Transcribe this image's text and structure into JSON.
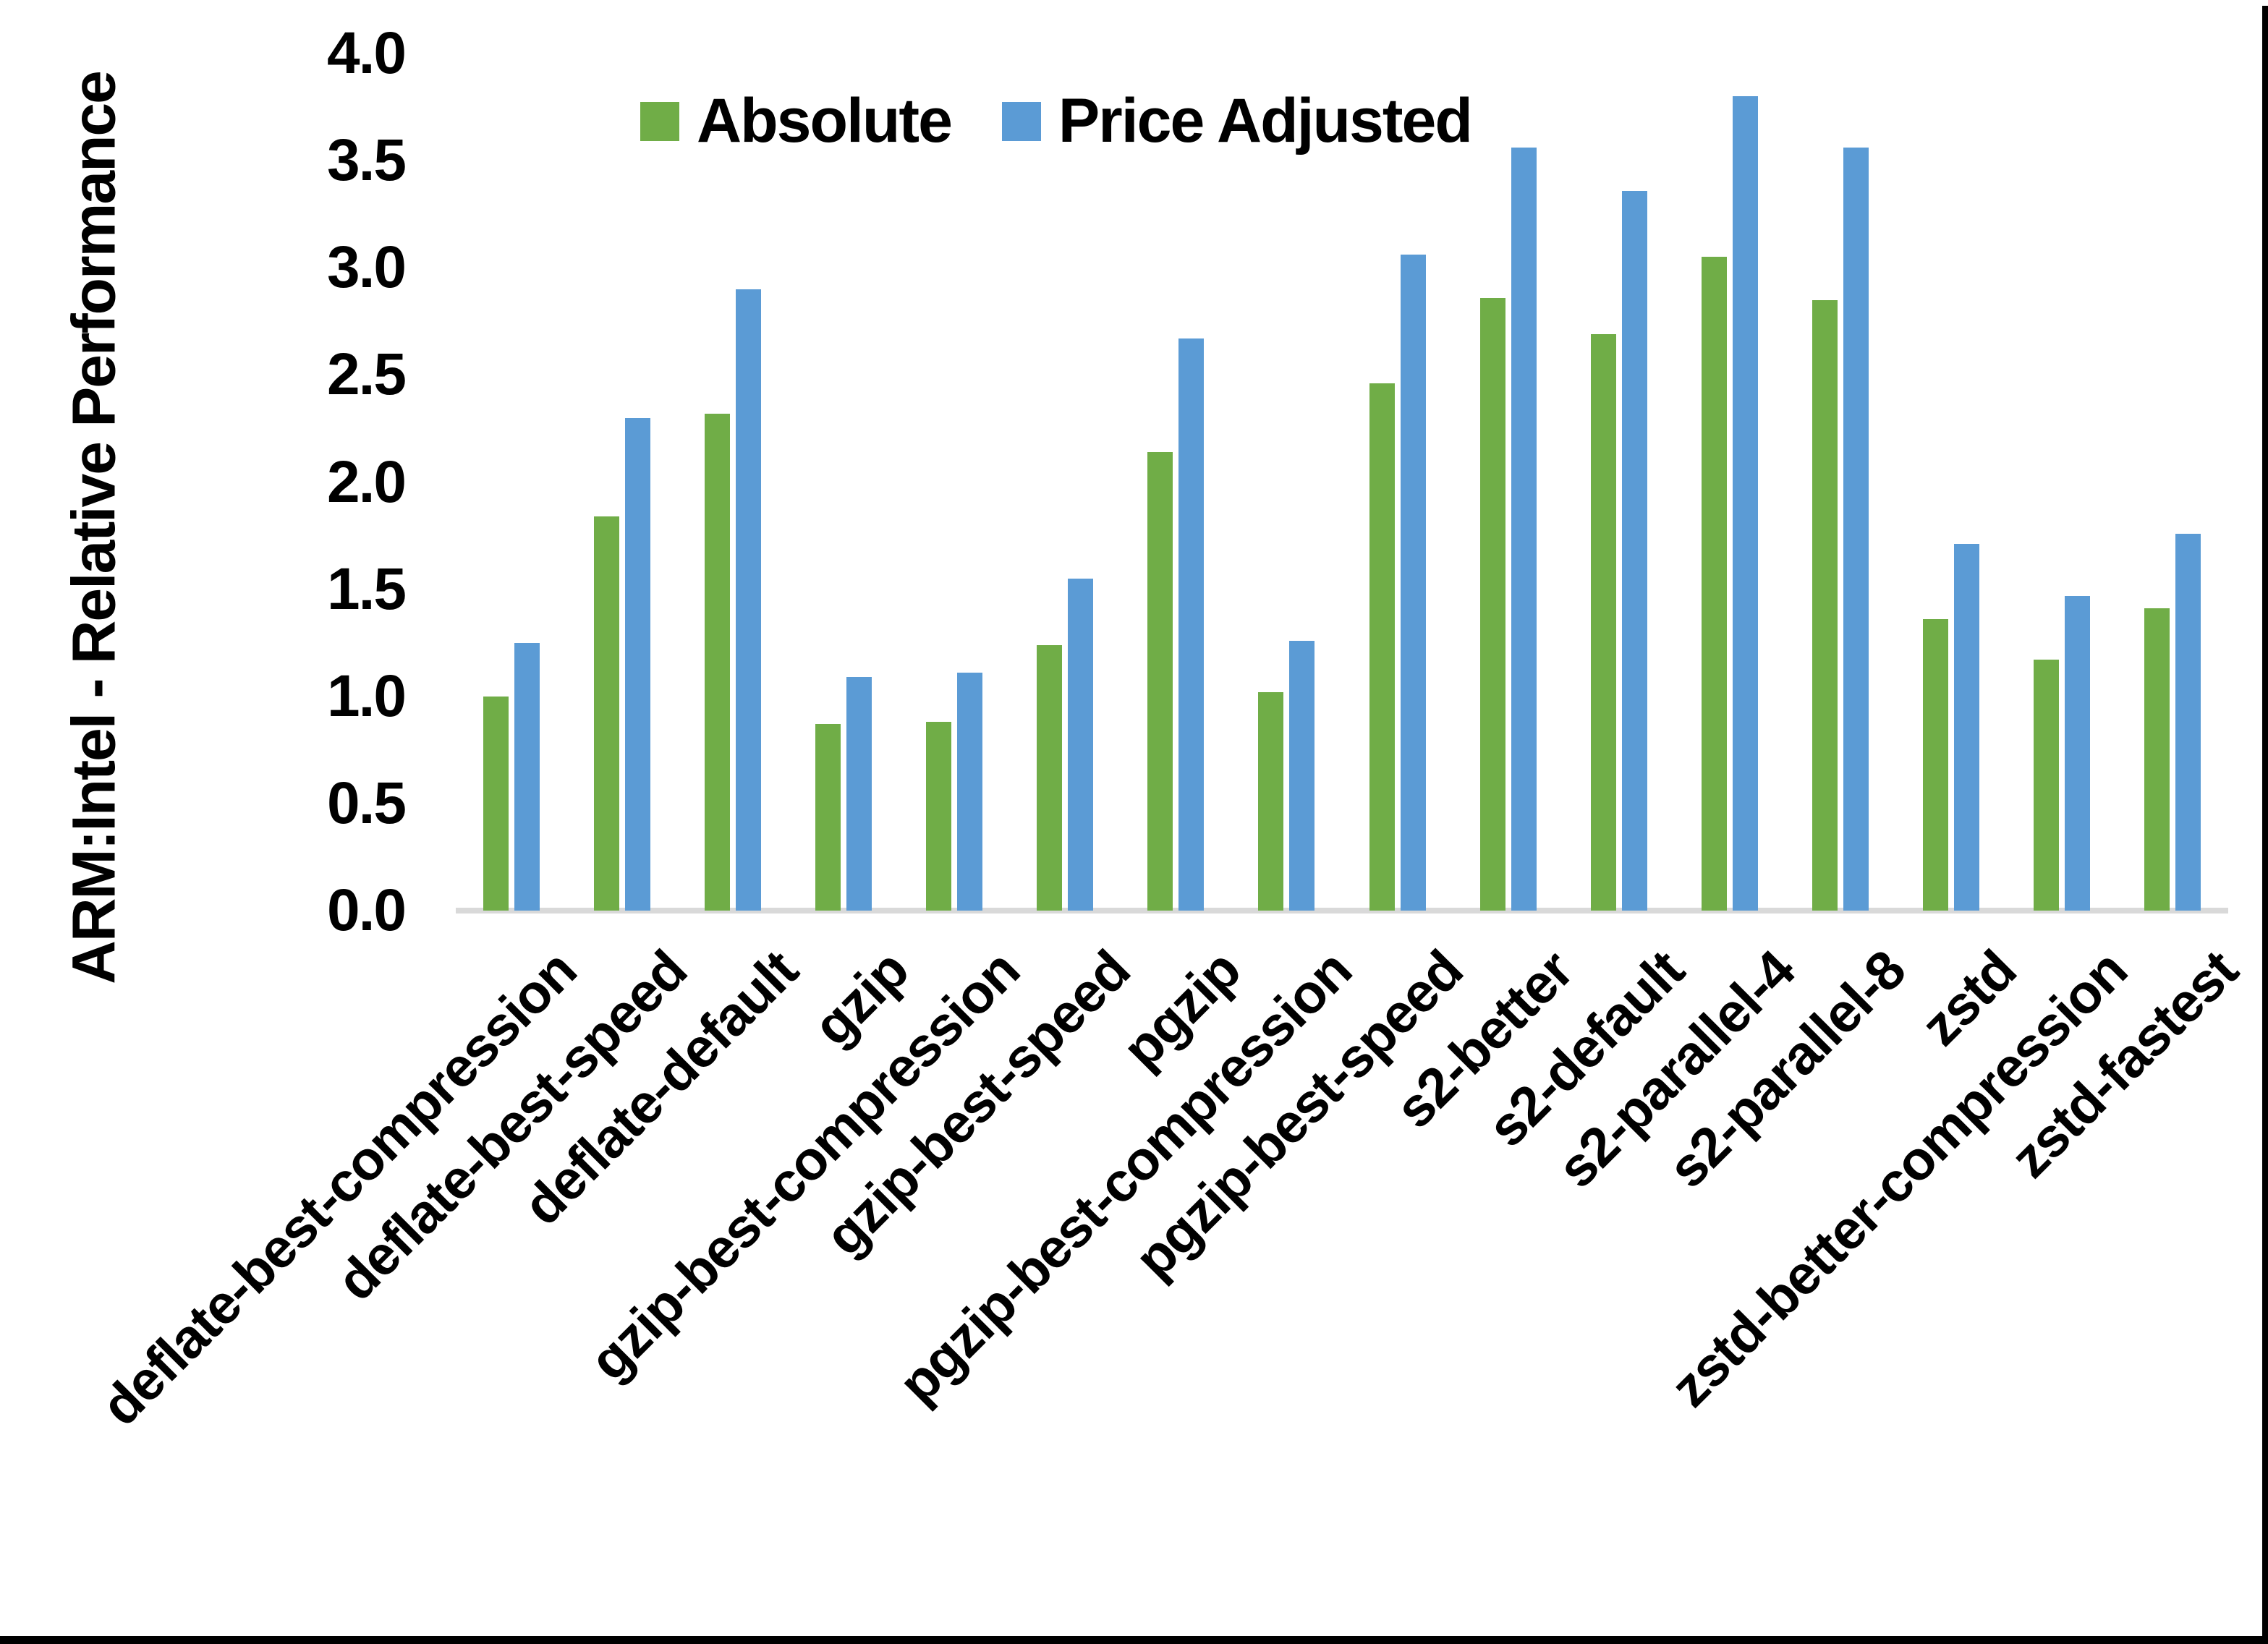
{
  "figure": {
    "background_color": "#ffffff",
    "frame_border_color": "#000000"
  },
  "chart_data": {
    "type": "bar",
    "title": "",
    "xlabel": "",
    "ylabel": "ARM:Intel - Relative Performance",
    "ylim": [
      0.0,
      4.0
    ],
    "ytick_labels": [
      "0.0",
      "0.5",
      "1.0",
      "1.5",
      "2.0",
      "2.5",
      "3.0",
      "3.5",
      "4.0"
    ],
    "grid": false,
    "legend_position": "top-center",
    "axis_line_color": "#d9d9d9",
    "text_color": "#000000",
    "categories": [
      "deflate-best-compression",
      "deflate-best-speed",
      "deflate-default",
      "gzip",
      "gzip-best-compression",
      "gzip-best-speed",
      "pgzip",
      "pgzip-best-compression",
      "pgzip-best-speed",
      "s2-better",
      "s2-default",
      "s2-parallel-4",
      "s2-parallel-8",
      "zstd",
      "zstd-better-compression",
      "zstd-fastest"
    ],
    "series": [
      {
        "name": "Absolute",
        "color": "#70AD47",
        "values": [
          1.0,
          1.84,
          2.32,
          0.87,
          0.88,
          1.24,
          2.14,
          1.02,
          2.46,
          2.86,
          2.69,
          3.05,
          2.85,
          1.36,
          1.17,
          1.41
        ]
      },
      {
        "name": "Price Adjusted",
        "color": "#5B9BD5",
        "values": [
          1.25,
          2.3,
          2.9,
          1.09,
          1.11,
          1.55,
          2.67,
          1.26,
          3.06,
          3.56,
          3.36,
          3.8,
          3.56,
          1.71,
          1.47,
          1.76
        ]
      }
    ]
  }
}
